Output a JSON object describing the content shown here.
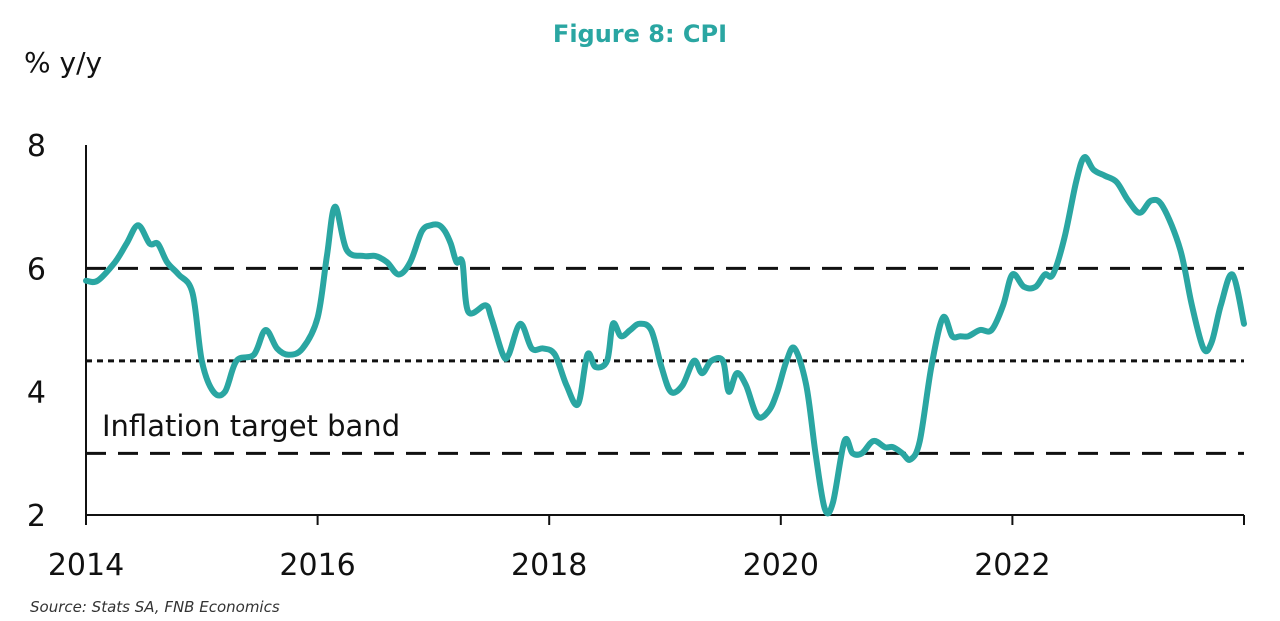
{
  "chart_data": {
    "type": "line",
    "title": "Figure 8: CPI",
    "ylabel": "% y/y",
    "xlabel": "",
    "xlim": [
      2014.0,
      2024.0
    ],
    "ylim": [
      2,
      8
    ],
    "xticks": [
      2014,
      2016,
      2018,
      2020,
      2022
    ],
    "yticks": [
      2,
      4,
      6,
      8
    ],
    "grid": false,
    "legend": "none",
    "line_color": "#2aa6a2",
    "series": [
      {
        "x": [
          2014.0,
          2014.1,
          2014.25,
          2014.35,
          2014.45,
          2014.55,
          2014.62,
          2014.7,
          2014.8,
          2014.92,
          2015.0,
          2015.1,
          2015.2,
          2015.3,
          2015.45,
          2015.55,
          2015.65,
          2015.75,
          2015.87,
          2016.0,
          2016.08,
          2016.15,
          2016.25,
          2016.4,
          2016.5,
          2016.6,
          2016.7,
          2016.8,
          2016.9,
          2016.98,
          2017.05,
          2017.1,
          2017.15,
          2017.2,
          2017.25,
          2017.3,
          2017.45,
          2017.5,
          2017.6,
          2017.65,
          2017.75,
          2017.85,
          2017.95,
          2018.05,
          2018.15,
          2018.25,
          2018.33,
          2018.4,
          2018.5,
          2018.55,
          2018.62,
          2018.7,
          2018.78,
          2018.88,
          2018.97,
          2019.05,
          2019.15,
          2019.25,
          2019.32,
          2019.4,
          2019.5,
          2019.55,
          2019.62,
          2019.7,
          2019.8,
          2019.9,
          2019.97,
          2020.05,
          2020.12,
          2020.22,
          2020.3,
          2020.38,
          2020.45,
          2020.55,
          2020.62,
          2020.7,
          2020.8,
          2020.9,
          2020.97,
          2021.05,
          2021.12,
          2021.2,
          2021.3,
          2021.4,
          2021.48,
          2021.55,
          2021.62,
          2021.72,
          2021.82,
          2021.92,
          2022.0,
          2022.1,
          2022.2,
          2022.28,
          2022.35,
          2022.45,
          2022.55,
          2022.62,
          2022.7,
          2022.8,
          2022.9,
          2023.0,
          2023.1,
          2023.2,
          2023.3,
          2023.45,
          2023.55,
          2023.65,
          2023.72,
          2023.8,
          2023.9,
          2024.0
        ],
        "values": [
          5.8,
          5.8,
          6.1,
          6.4,
          6.7,
          6.4,
          6.4,
          6.1,
          5.9,
          5.6,
          4.5,
          4.0,
          4.0,
          4.5,
          4.6,
          5.0,
          4.7,
          4.6,
          4.7,
          5.2,
          6.2,
          7.0,
          6.3,
          6.2,
          6.2,
          6.1,
          5.9,
          6.1,
          6.6,
          6.7,
          6.7,
          6.6,
          6.4,
          6.1,
          6.1,
          5.3,
          5.4,
          5.2,
          4.6,
          4.6,
          5.1,
          4.7,
          4.7,
          4.6,
          4.1,
          3.8,
          4.6,
          4.4,
          4.5,
          5.1,
          4.9,
          5.0,
          5.1,
          5.0,
          4.4,
          4.0,
          4.1,
          4.5,
          4.3,
          4.5,
          4.5,
          4.0,
          4.3,
          4.1,
          3.6,
          3.7,
          4.0,
          4.5,
          4.7,
          4.1,
          3.0,
          2.1,
          2.2,
          3.2,
          3.0,
          3.0,
          3.2,
          3.1,
          3.1,
          3.0,
          2.9,
          3.2,
          4.4,
          5.2,
          4.9,
          4.9,
          4.9,
          5.0,
          5.0,
          5.4,
          5.9,
          5.7,
          5.7,
          5.9,
          5.9,
          6.5,
          7.4,
          7.8,
          7.6,
          7.5,
          7.4,
          7.1,
          6.9,
          7.1,
          7.0,
          6.3,
          5.4,
          4.7,
          4.8,
          5.4,
          5.9,
          5.1
        ]
      }
    ],
    "reference_lines": [
      {
        "y": 6,
        "style": "dashed"
      },
      {
        "y": 4.5,
        "style": "dotted"
      },
      {
        "y": 3,
        "style": "dashed"
      }
    ],
    "annotations": [
      {
        "text": "Inflation target band"
      }
    ],
    "source": "Source: Stats SA, FNB Economics"
  }
}
